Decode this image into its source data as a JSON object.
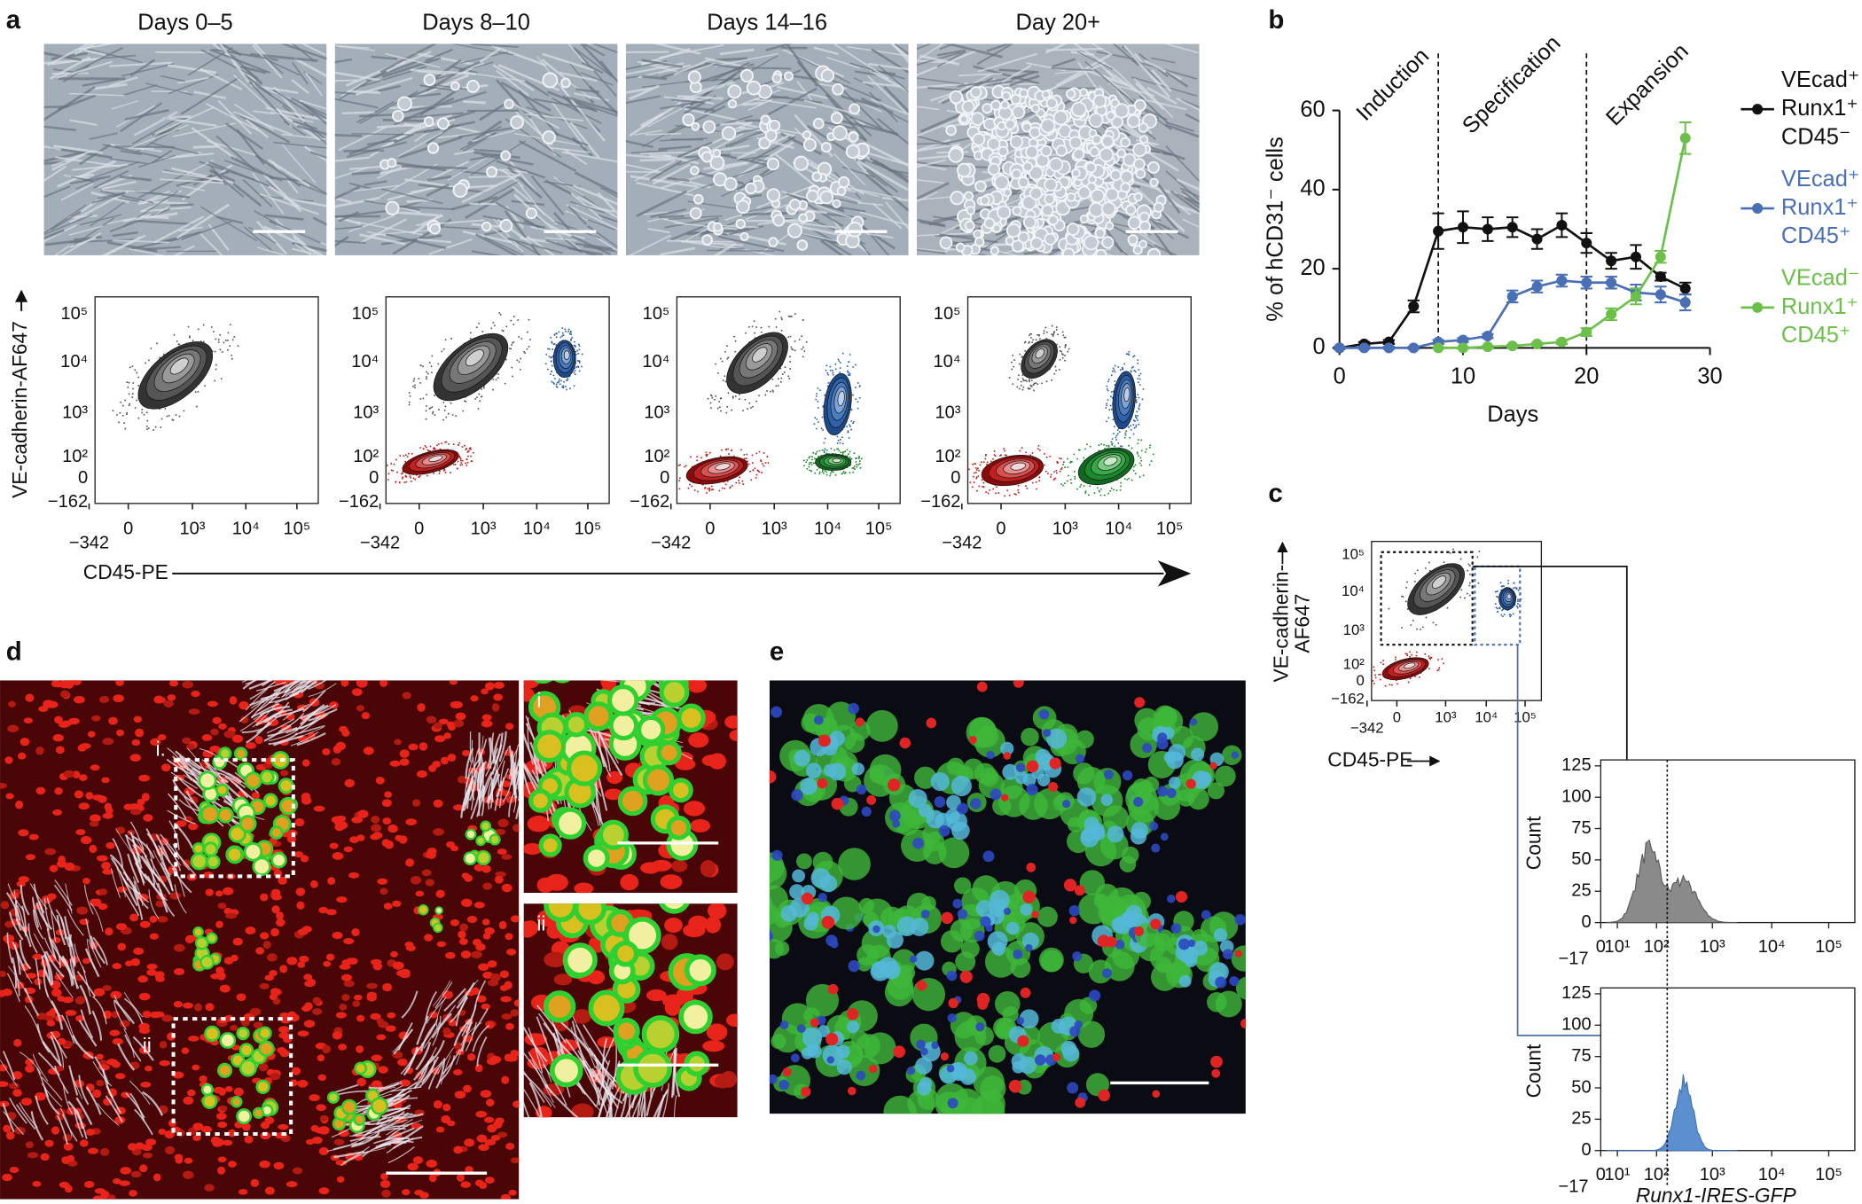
{
  "panels": [
    "a",
    "b",
    "c",
    "d",
    "e"
  ],
  "panel_a": {
    "image_titles": [
      "Days 0–5",
      "Days 8–10",
      "Days 14–16",
      "Day  20+"
    ],
    "y_label": "VE-cadherin-AF647",
    "x_label": "CD45-PE",
    "flow_yticks": [
      "10⁵",
      "10⁴",
      "10³",
      "10²",
      "0",
      "−162"
    ],
    "flow_xticks": [
      "−342",
      "0",
      "10³",
      "10⁴",
      "10⁵"
    ]
  },
  "chart_data": {
    "type": "line",
    "y_label": "% of hCD31⁻ cells",
    "x_label": "Days",
    "phases": [
      "Induction",
      "Specification",
      "Expansion"
    ],
    "phase_boundaries": [
      8,
      20
    ],
    "xlim": [
      0,
      30
    ],
    "ylim": [
      0,
      60
    ],
    "xticks": [
      0,
      10,
      20,
      30
    ],
    "yticks": [
      0,
      20,
      40,
      60
    ],
    "x": [
      0,
      2,
      4,
      6,
      8,
      10,
      12,
      14,
      16,
      18,
      20,
      22,
      24,
      26,
      28
    ],
    "series": [
      {
        "name": "VEcad⁺ Runx1⁺ CD45⁻",
        "color": "#111111",
        "values": [
          0,
          1,
          1.5,
          10.5,
          29.5,
          30.5,
          30,
          30.5,
          27.5,
          31,
          26.5,
          22,
          23,
          18,
          15
        ],
        "errors": [
          0.3,
          0.5,
          0.5,
          1.5,
          4.5,
          4,
          3,
          2.5,
          2.5,
          3,
          2.5,
          2,
          3,
          1,
          1.5
        ]
      },
      {
        "name": "VEcad⁺ Runx1⁺ CD45⁺",
        "color": "#4a6fb5",
        "values": [
          0,
          0,
          0,
          0,
          1.5,
          2,
          3,
          13,
          15.5,
          17,
          16.5,
          16.5,
          14,
          13.5,
          11.5
        ],
        "errors": [
          0.3,
          0.3,
          0.3,
          0.3,
          0.5,
          0.5,
          0.5,
          1.5,
          1.5,
          1.5,
          1.5,
          1.5,
          2,
          2,
          2
        ]
      },
      {
        "name": "VEcad⁻ Runx1⁺ CD45⁺",
        "color": "#6cc04a",
        "values": [
          null,
          null,
          null,
          null,
          0,
          0,
          0.3,
          0.5,
          1,
          1.5,
          4,
          8.5,
          13,
          23,
          53
        ],
        "errors": [
          null,
          null,
          null,
          null,
          0.2,
          0.2,
          0.2,
          0.3,
          0.3,
          0.5,
          1,
          1.5,
          2,
          1.5,
          4
        ]
      }
    ]
  },
  "panel_c": {
    "y_label_lines": [
      "VE-cadherin-",
      "AF647"
    ],
    "x_label": "CD45-PE",
    "flow_yticks": [
      "10⁵",
      "10⁴",
      "10³",
      "10²",
      "0",
      "−162"
    ],
    "flow_xticks": [
      "−342",
      "0",
      "10³",
      "10⁴",
      "10⁵"
    ],
    "hist_y_label": "Count",
    "hist_yticks": [
      0,
      25,
      50,
      75,
      100,
      125
    ],
    "hist_xticks": [
      "−17",
      "0",
      "10¹",
      "10²",
      "10³",
      "10⁴",
      "10⁵"
    ],
    "hist_x_label": "Runx1-IRES-GFP"
  },
  "panel_d": {
    "roi_labels": [
      "i.",
      "ii"
    ],
    "inset_labels": [
      "i",
      "ii"
    ]
  }
}
